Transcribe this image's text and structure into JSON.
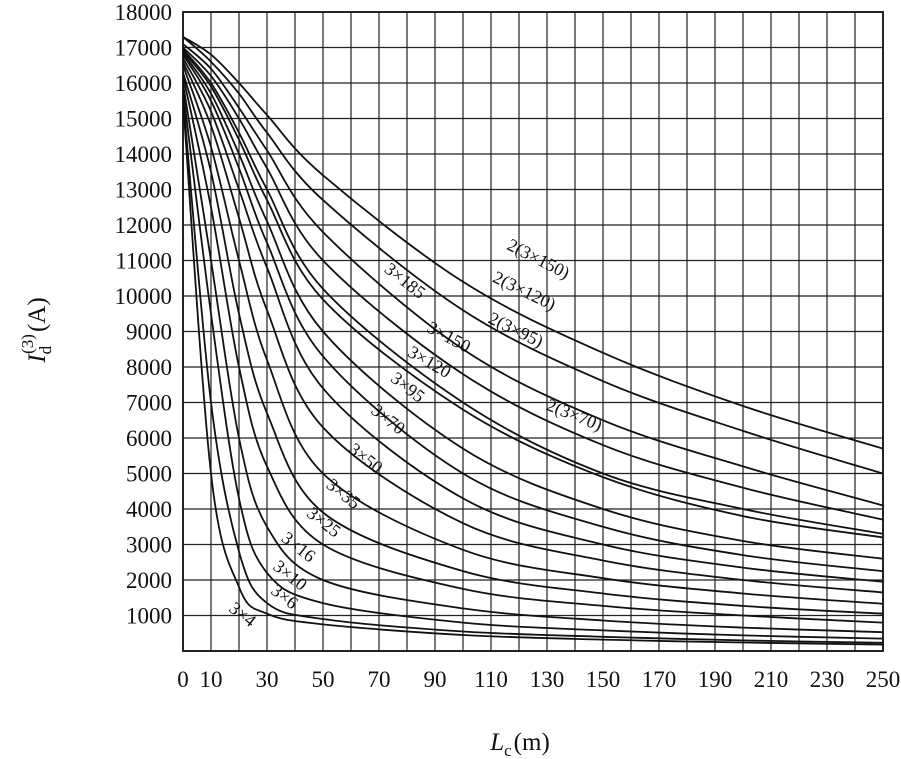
{
  "chart_data": {
    "type": "line",
    "xlabel": {
      "main": "L",
      "sub": "c",
      "unit": "(m)"
    },
    "ylabel": {
      "main": "I",
      "sub": "d",
      "sup": "(3)",
      "unit": "(A)"
    },
    "xlim": [
      0,
      250
    ],
    "ylim": [
      0,
      18000
    ],
    "x_ticks": [
      0,
      10,
      30,
      50,
      70,
      90,
      110,
      130,
      150,
      170,
      190,
      210,
      230,
      250
    ],
    "x_tick_labels": [
      "0",
      "10",
      "30",
      "50",
      "70",
      "90",
      "110",
      "130",
      "150",
      "170",
      "190",
      "210",
      "230",
      "250"
    ],
    "y_ticks": [
      1000,
      2000,
      3000,
      4000,
      5000,
      6000,
      7000,
      8000,
      9000,
      10000,
      11000,
      12000,
      13000,
      14000,
      15000,
      16000,
      17000,
      18000
    ],
    "y_tick_labels": [
      "1000",
      "2000",
      "3000",
      "4000",
      "5000",
      "6000",
      "7000",
      "8000",
      "9000",
      "10000",
      "11000",
      "12000",
      "13000",
      "14000",
      "15000",
      "16000",
      "17000",
      "18000"
    ],
    "grid": true,
    "series": [
      {
        "name": "3×4",
        "x": [
          0,
          10,
          20,
          30,
          50,
          100,
          150,
          200,
          250
        ],
        "y": [
          15500,
          5000,
          1800,
          1050,
          750,
          450,
          320,
          240,
          180
        ]
      },
      {
        "name": "3×6",
        "x": [
          0,
          10,
          20,
          30,
          50,
          100,
          150,
          200,
          250
        ],
        "y": [
          15600,
          7000,
          2800,
          1350,
          900,
          550,
          400,
          300,
          230
        ]
      },
      {
        "name": "3×10",
        "x": [
          0,
          10,
          20,
          30,
          50,
          100,
          150,
          200,
          250
        ],
        "y": [
          15800,
          9500,
          4300,
          2200,
          1350,
          800,
          580,
          440,
          350
        ]
      },
      {
        "name": "3×16",
        "x": [
          0,
          10,
          20,
          30,
          50,
          100,
          150,
          200,
          250
        ],
        "y": [
          16000,
          11000,
          6000,
          3500,
          2000,
          1200,
          860,
          660,
          530
        ]
      },
      {
        "name": "3×25",
        "x": [
          0,
          10,
          20,
          30,
          50,
          100,
          150,
          200,
          250
        ],
        "y": [
          16200,
          12500,
          8000,
          5200,
          3000,
          1750,
          1270,
          1000,
          800
        ]
      },
      {
        "name": "3×35",
        "x": [
          0,
          10,
          20,
          30,
          50,
          100,
          150,
          200,
          250
        ],
        "y": [
          16300,
          13500,
          9500,
          6700,
          3900,
          2250,
          1620,
          1270,
          1050
        ]
      },
      {
        "name": "3×50",
        "x": [
          0,
          10,
          20,
          30,
          50,
          100,
          150,
          200,
          250
        ],
        "y": [
          16500,
          14200,
          11000,
          8200,
          5000,
          2850,
          2050,
          1620,
          1330
        ]
      },
      {
        "name": "3×70",
        "x": [
          0,
          10,
          20,
          30,
          50,
          100,
          150,
          200,
          250
        ],
        "y": [
          16600,
          14800,
          12200,
          9600,
          6300,
          3600,
          2550,
          2000,
          1650
        ]
      },
      {
        "name": "3×95",
        "x": [
          0,
          10,
          20,
          30,
          50,
          100,
          150,
          200,
          250
        ],
        "y": [
          16700,
          15200,
          13000,
          10800,
          7400,
          4300,
          3000,
          2350,
          1950
        ]
      },
      {
        "name": "3×120",
        "x": [
          0,
          10,
          20,
          30,
          50,
          100,
          150,
          200,
          250
        ],
        "y": [
          16800,
          15500,
          13600,
          11500,
          8300,
          5000,
          3500,
          2700,
          2250
        ]
      },
      {
        "name": "3×150",
        "x": [
          0,
          10,
          20,
          30,
          50,
          100,
          150,
          200,
          250
        ],
        "y": [
          16850,
          15700,
          14000,
          12100,
          9000,
          5700,
          4000,
          3100,
          2600
        ]
      },
      {
        "name": "3×185",
        "x": [
          0,
          10,
          20,
          30,
          50,
          100,
          150,
          200,
          250
        ],
        "y": [
          16900,
          15900,
          14400,
          12700,
          9900,
          6800,
          4900,
          3800,
          3200
        ]
      },
      {
        "name": "2(3×70)",
        "x": [
          0,
          10,
          20,
          30,
          50,
          100,
          150,
          200,
          250
        ],
        "y": [
          16950,
          16000,
          14600,
          13000,
          10200,
          7000,
          5000,
          4000,
          3300
        ]
      },
      {
        "name": "2(3×95)",
        "x": [
          0,
          10,
          20,
          30,
          50,
          100,
          150,
          200,
          250
        ],
        "y": [
          17000,
          16200,
          15000,
          13600,
          11000,
          7800,
          5800,
          4600,
          3700
        ]
      },
      {
        "name": "2(3×120)",
        "x": [
          0,
          10,
          20,
          30,
          50,
          100,
          150,
          200,
          250
        ],
        "y": [
          17100,
          16400,
          15300,
          14100,
          11800,
          8500,
          6500,
          5200,
          4100
        ]
      },
      {
        "name": "2(3×150)",
        "x": [
          0,
          10,
          20,
          30,
          50,
          100,
          150,
          200,
          250
        ],
        "y": [
          17300,
          16600,
          15700,
          14600,
          12700,
          9600,
          7600,
          6200,
          5000
        ]
      },
      {
        "name": "",
        "x": [
          0,
          10,
          20,
          30,
          50,
          100,
          150,
          200,
          250
        ],
        "y": [
          17300,
          16800,
          16000,
          15100,
          13400,
          10400,
          8400,
          6900,
          5700
        ]
      }
    ],
    "curve_labels": [
      {
        "text": "3×4",
        "x": 20,
        "y": 900,
        "angle": 38
      },
      {
        "text": "3×6",
        "x": 35,
        "y": 1400,
        "angle": 38
      },
      {
        "text": "3×10",
        "x": 37,
        "y": 2000,
        "angle": 38
      },
      {
        "text": "3×16",
        "x": 40,
        "y": 2800,
        "angle": 38
      },
      {
        "text": "3×25",
        "x": 49,
        "y": 3500,
        "angle": 38
      },
      {
        "text": "3×35",
        "x": 56,
        "y": 4300,
        "angle": 38
      },
      {
        "text": "3×50",
        "x": 64,
        "y": 5300,
        "angle": 38
      },
      {
        "text": "3×70",
        "x": 72,
        "y": 6400,
        "angle": 38
      },
      {
        "text": "3×95",
        "x": 79,
        "y": 7300,
        "angle": 38
      },
      {
        "text": "3×120",
        "x": 87,
        "y": 8000,
        "angle": 30
      },
      {
        "text": "3×150",
        "x": 94,
        "y": 8700,
        "angle": 28
      },
      {
        "text": "3×185",
        "x": 78,
        "y": 10300,
        "angle": 38
      },
      {
        "text": "2(3×70)",
        "x": 139,
        "y": 6500,
        "angle": 22
      },
      {
        "text": "2(3×95)",
        "x": 118,
        "y": 8900,
        "angle": 26
      },
      {
        "text": "2(3×120)",
        "x": 121,
        "y": 10000,
        "angle": 26
      },
      {
        "text": "2(3×150)",
        "x": 126,
        "y": 10900,
        "angle": 27
      }
    ]
  }
}
